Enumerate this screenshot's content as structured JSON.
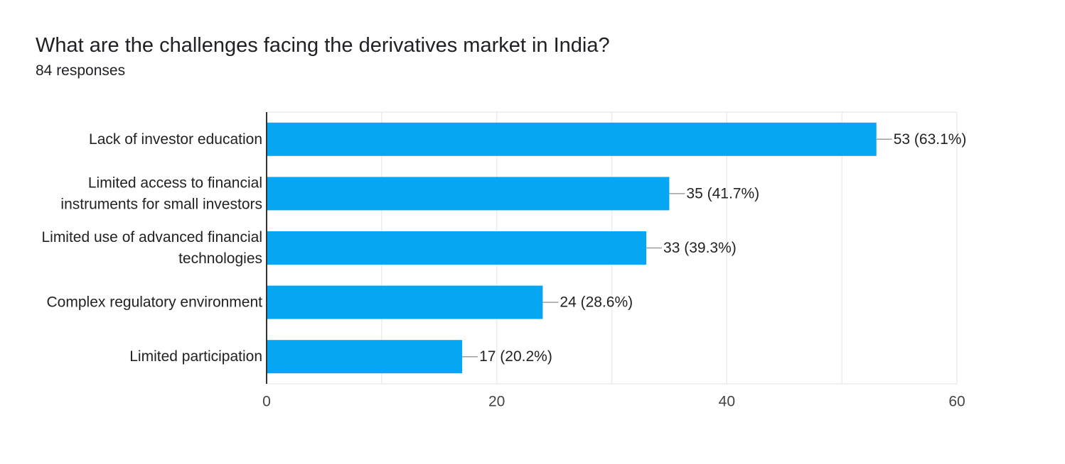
{
  "question": {
    "title": "What are the challenges facing the derivatives market in India?",
    "responses": "84 responses"
  },
  "chart_data": {
    "type": "bar",
    "orientation": "horizontal",
    "categories": [
      [
        "Lack of investor education"
      ],
      [
        "Limited access to financial",
        "instruments for small investors"
      ],
      [
        "Limited use of advanced financial",
        "technologies"
      ],
      [
        "Complex regulatory environment"
      ],
      [
        "Limited participation"
      ]
    ],
    "values": [
      53,
      35,
      33,
      24,
      17
    ],
    "value_labels": [
      "53 (63.1%)",
      "35 (41.7%)",
      "33 (39.3%)",
      "24 (28.6%)",
      "17 (20.2%)"
    ],
    "xlim": [
      0,
      60
    ],
    "x_ticks": [
      0,
      20,
      40,
      60
    ],
    "grid": true,
    "bar_color": "#06a6f3",
    "title": "",
    "xlabel": "",
    "ylabel": ""
  },
  "colors": {
    "bar": "#06a6f3",
    "grid": "#ececec",
    "axis": "#333333",
    "leader": "#9e9e9e"
  }
}
